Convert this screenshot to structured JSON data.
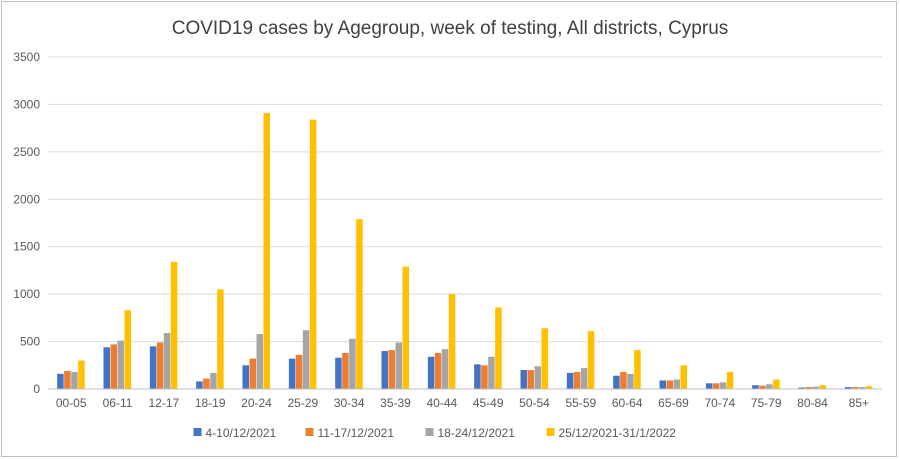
{
  "chart_data": {
    "type": "bar",
    "title": "COVID19 cases by Agegroup, week of testing, All districts, Cyprus",
    "xlabel": "",
    "ylabel": "",
    "ylim": [
      0,
      3500
    ],
    "yticks": [
      0,
      500,
      1000,
      1500,
      2000,
      2500,
      3000,
      3500
    ],
    "grid": true,
    "legend": "bottom",
    "categories": [
      "00-05",
      "06-11",
      "12-17",
      "18-19",
      "20-24",
      "25-29",
      "30-34",
      "35-39",
      "40-44",
      "45-49",
      "50-54",
      "55-59",
      "60-64",
      "65-69",
      "70-74",
      "75-79",
      "80-84",
      "85+"
    ],
    "series": [
      {
        "name": "4-10/12/2021",
        "color": "#4472c4",
        "values": [
          160,
          440,
          450,
          80,
          250,
          320,
          330,
          400,
          340,
          260,
          200,
          170,
          140,
          90,
          60,
          40,
          15,
          20
        ]
      },
      {
        "name": "11-17/12/2021",
        "color": "#ed7d31",
        "values": [
          190,
          470,
          490,
          110,
          320,
          360,
          380,
          410,
          380,
          250,
          200,
          180,
          180,
          90,
          60,
          35,
          20,
          20
        ]
      },
      {
        "name": "18-24/12/2021",
        "color": "#a5a5a5",
        "values": [
          180,
          510,
          590,
          170,
          580,
          620,
          530,
          490,
          420,
          340,
          240,
          220,
          160,
          100,
          70,
          50,
          25,
          20
        ]
      },
      {
        "name": "25/12/2021-31/1/2022",
        "color": "#ffc000",
        "values": [
          300,
          830,
          1340,
          1050,
          2910,
          2840,
          1790,
          1290,
          1000,
          860,
          640,
          610,
          410,
          250,
          180,
          100,
          40,
          30
        ]
      }
    ]
  }
}
